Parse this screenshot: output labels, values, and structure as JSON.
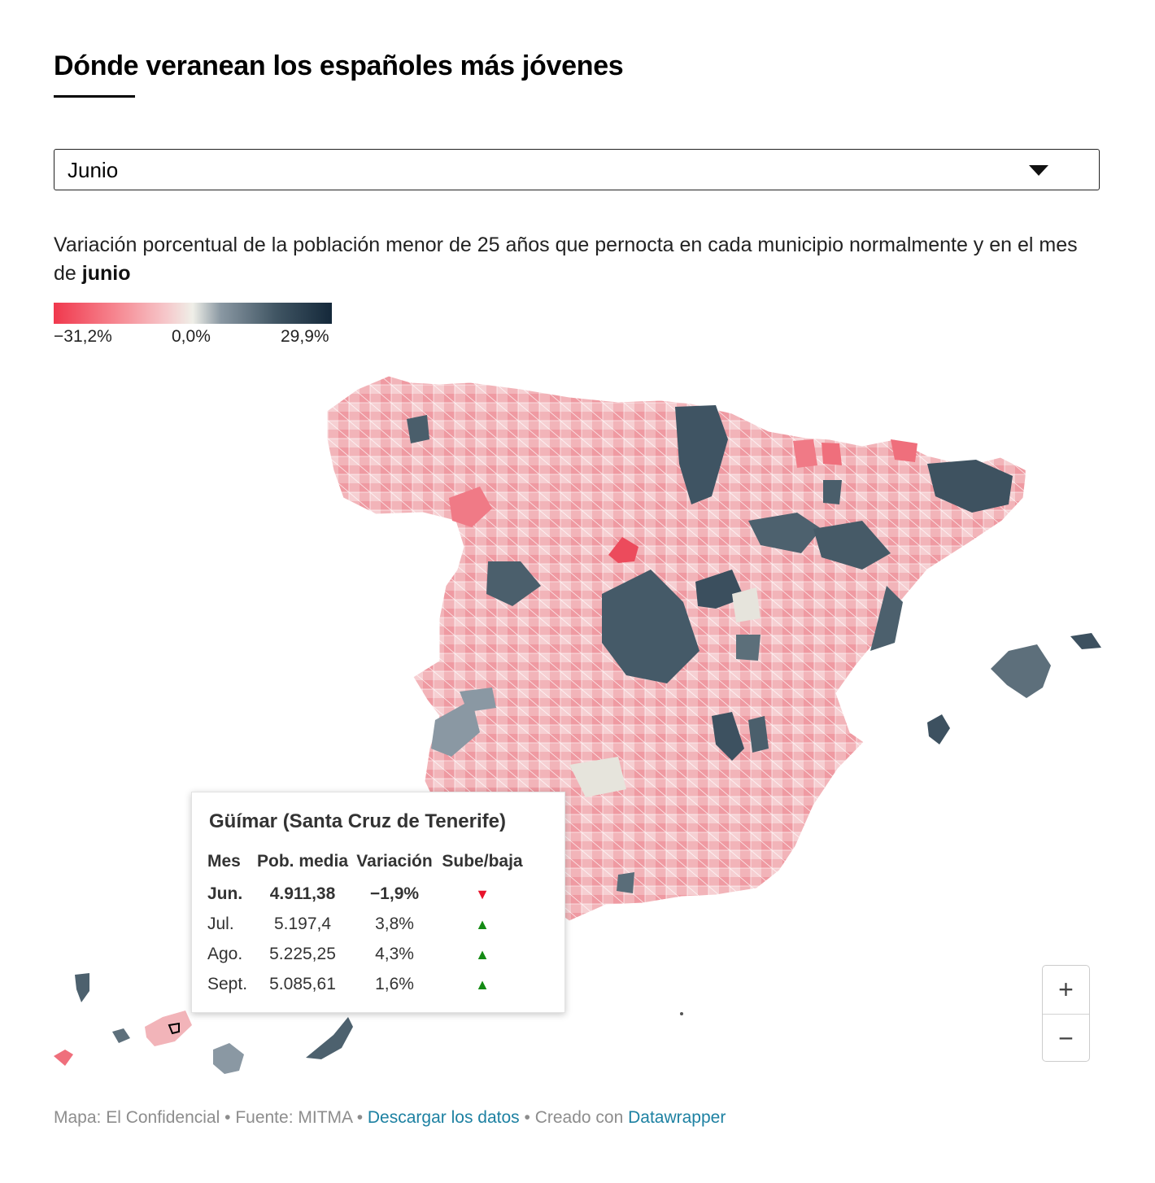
{
  "title": "Dónde veranean los españoles más jóvenes",
  "dropdown": {
    "selected": "Junio"
  },
  "subtitle": {
    "text": "Variación porcentual de la población menor de 25 años que pernocta en cada municipio normalmente y en el mes de ",
    "bold": "junio"
  },
  "legend": {
    "min_label": "−31,2%",
    "mid_label": "0,0%",
    "max_label": "29,9%",
    "min_value": -31.2,
    "max_value": 29.9,
    "colors": [
      "#f0384d",
      "#f6c6c9",
      "#efefe8",
      "#405563",
      "#14283a"
    ]
  },
  "tooltip": {
    "title": "Güímar (Santa Cruz de Tenerife)",
    "headers": [
      "Mes",
      "Pob. media",
      "Variación",
      "Sube/baja"
    ],
    "rows": [
      {
        "mes": "Jun.",
        "pob": "4.911,38",
        "var": "−1,9%",
        "trend": "down",
        "icon": "▼"
      },
      {
        "mes": "Jul.",
        "pob": "5.197,4",
        "var": "3,8%",
        "trend": "up",
        "icon": "▲"
      },
      {
        "mes": "Ago.",
        "pob": "5.225,25",
        "var": "4,3%",
        "trend": "up",
        "icon": "▲"
      },
      {
        "mes": "Sept.",
        "pob": "5.085,61",
        "var": "1,6%",
        "trend": "up",
        "icon": "▲"
      }
    ]
  },
  "zoom": {
    "in_label": "+",
    "out_label": "−"
  },
  "footer": {
    "map_credit": "Mapa: El Confidencial",
    "separator": " • ",
    "source": "Fuente: MITMA",
    "download_link": "Descargar los datos",
    "created_with": "Creado con ",
    "tool_link": "Datawrapper"
  }
}
